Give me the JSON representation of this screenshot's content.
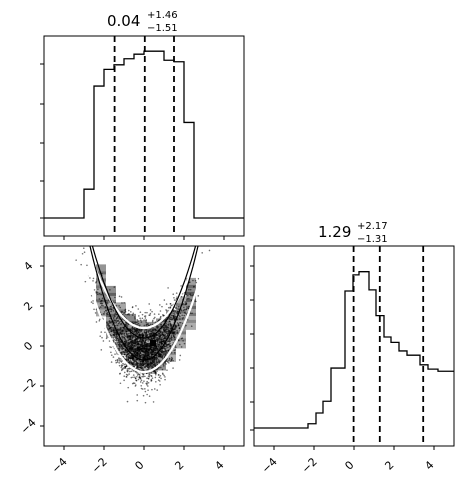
{
  "chart_data": [
    {
      "type": "histogram",
      "panel": "top-left",
      "title": {
        "median": "0.04",
        "plus": "+1.46",
        "minus": "−1.51"
      },
      "xlim": [
        -5,
        5
      ],
      "bin_edges": [
        -5,
        -4.2,
        -3,
        -2.5,
        -2.0,
        -1.5,
        -1.0,
        -0.5,
        0,
        0.5,
        1.0,
        1.5,
        2.0,
        2.5,
        3,
        5
      ],
      "counts": [
        0,
        0,
        0.95,
        4.35,
        4.9,
        5.05,
        5.25,
        5.4,
        5.5,
        5.5,
        5.2,
        5.15,
        3.15,
        0,
        0
      ],
      "ylim": [
        0,
        6
      ],
      "quantiles": [
        -1.47,
        0.04,
        1.5
      ],
      "xticks": [
        -4,
        -2,
        0,
        2,
        4
      ]
    },
    {
      "type": "histogram",
      "panel": "bottom-right",
      "title": {
        "median": "1.29",
        "plus": "+2.17",
        "minus": "−1.31"
      },
      "xlim": [
        -5,
        5
      ],
      "bin_edges": [
        -5,
        -2.3,
        -1.9,
        -1.55,
        -1.15,
        -0.45,
        -0.05,
        0.25,
        0.75,
        1.1,
        1.5,
        1.85,
        2.25,
        2.65,
        3.3,
        3.7,
        4.2,
        5
      ],
      "counts": [
        0,
        0.2,
        0.7,
        1.25,
        2.8,
        6.4,
        7.15,
        7.3,
        6.45,
        5.25,
        4.25,
        4.0,
        3.6,
        3.4,
        2.95,
        2.75,
        2.65
      ],
      "ylim": [
        0,
        8.5
      ],
      "quantiles": [
        -0.02,
        1.29,
        3.46
      ],
      "xticks": [
        -4,
        -2,
        0,
        2,
        4
      ],
      "xtick_labels": [
        "−4",
        "−2",
        "0",
        "2",
        "4"
      ]
    },
    {
      "type": "scatter",
      "panel": "bottom-left",
      "description_shape": "parabola y = x^2/2 + noise with density contours",
      "xlim": [
        -5,
        5
      ],
      "ylim": [
        -5,
        5
      ],
      "xticks": [
        -4,
        -2,
        0,
        2,
        4
      ],
      "yticks": [
        -4,
        -2,
        0,
        2,
        4
      ],
      "xtick_labels": [
        "−4",
        "−2",
        "0",
        "2",
        "4"
      ],
      "ytick_labels": [
        "−4",
        "−2",
        "0",
        "2",
        "4"
      ],
      "point_color": "#000000",
      "contour_color": "#ffffff"
    }
  ]
}
